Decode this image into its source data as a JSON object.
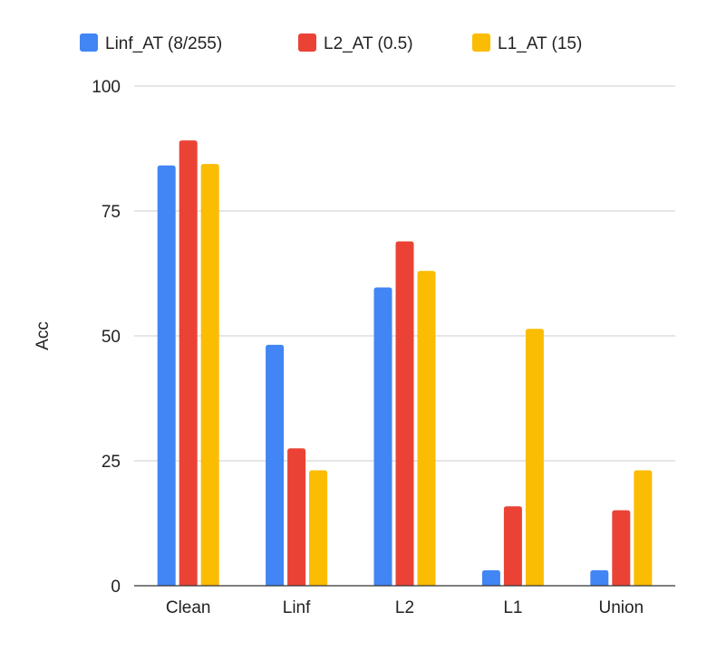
{
  "chart_data": {
    "type": "bar",
    "categories": [
      "Clean",
      "Linf",
      "L2",
      "L1",
      "Union"
    ],
    "series": [
      {
        "name": "Linf_AT (8/255)",
        "color": "#4285F4",
        "values": [
          84.1,
          48.2,
          59.7,
          3.1,
          3.1
        ]
      },
      {
        "name": "L2_AT (0.5)",
        "color": "#EA4335",
        "values": [
          89.1,
          27.5,
          68.9,
          15.9,
          15.1
        ]
      },
      {
        "name": "L1_AT (15)",
        "color": "#FBBC04",
        "values": [
          84.4,
          23.1,
          63.0,
          51.4,
          23.1
        ]
      }
    ],
    "title": "",
    "xlabel": "",
    "ylabel": "Acc",
    "ylim": [
      0,
      100
    ],
    "yticks": [
      0,
      25,
      50,
      75,
      100
    ],
    "grid": true,
    "legend_position": "top"
  }
}
